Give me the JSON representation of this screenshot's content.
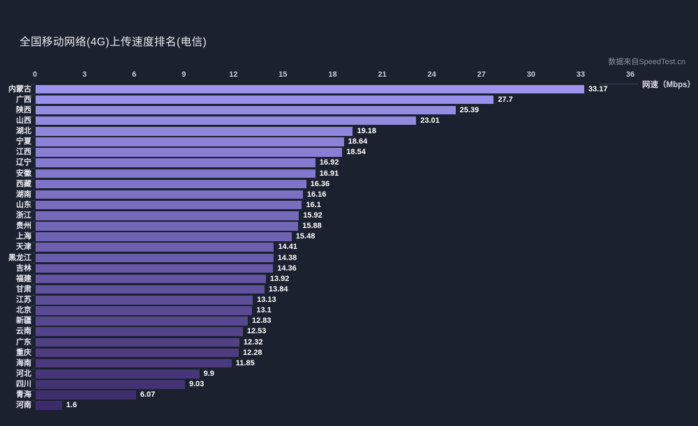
{
  "page": {
    "background": "#1C2130"
  },
  "chart_data": {
    "type": "bar",
    "orientation": "horizontal",
    "title": "全国移动网络(4G)上传速度排名(电信)",
    "source": "数据来自SpeedTest.cn",
    "axis_name": "网速（Mbps）",
    "categories": [
      "内蒙古",
      "广西",
      "陕西",
      "山西",
      "湖北",
      "宁夏",
      "江西",
      "辽宁",
      "安徽",
      "西藏",
      "湖南",
      "山东",
      "浙江",
      "贵州",
      "上海",
      "天津",
      "黑龙江",
      "吉林",
      "福建",
      "甘肃",
      "江苏",
      "北京",
      "新疆",
      "云南",
      "广东",
      "重庆",
      "海南",
      "河北",
      "四川",
      "青海",
      "河南"
    ],
    "values": [
      33.17,
      27.7,
      25.39,
      23.01,
      19.18,
      18.64,
      18.54,
      16.92,
      16.91,
      16.36,
      16.16,
      16.1,
      15.92,
      15.88,
      15.48,
      14.41,
      14.38,
      14.36,
      13.92,
      13.84,
      13.13,
      13.1,
      12.83,
      12.53,
      12.32,
      12.28,
      11.85,
      9.9,
      9.03,
      6.07,
      1.6
    ],
    "xlabel": "网速（Mbps）",
    "ylabel": "",
    "xlim": [
      0,
      36
    ],
    "x_ticks": [
      0,
      3,
      6,
      9,
      12,
      15,
      18,
      21,
      24,
      27,
      30,
      33,
      36
    ],
    "grid": false,
    "value_labels": true,
    "legend_position": "none",
    "colors": {
      "bar_gradient_start": "#9B93EE",
      "bar_gradient_end": "#3D2B6B",
      "background": "#1C2130",
      "title_text": "#E8EAEF",
      "axis_tick_text": "#C9CCD6",
      "category_text": "#E8EAF0",
      "value_text": "#FFFFFF",
      "credit_text": "#8D93A1"
    }
  }
}
